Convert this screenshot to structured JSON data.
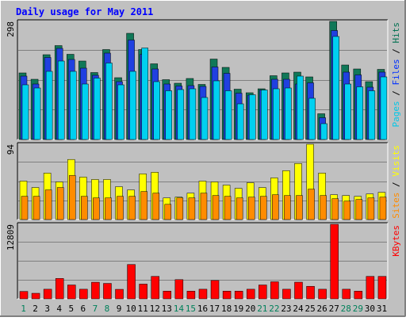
{
  "chart_data": [
    {
      "type": "bar",
      "title": "Daily usage for May 2011",
      "ymax_label": "298",
      "ylim": [
        0,
        298
      ],
      "legend": [
        {
          "label": "Pages",
          "color": "#00c8e8"
        },
        {
          "label": "Files",
          "color": "#0030ff"
        },
        {
          "label": "Hits",
          "color": "#007050"
        }
      ],
      "categories": [
        "1",
        "2",
        "3",
        "4",
        "5",
        "6",
        "7",
        "8",
        "9",
        "10",
        "11",
        "12",
        "13",
        "14",
        "15",
        "16",
        "17",
        "18",
        "19",
        "20",
        "21",
        "22",
        "23",
        "24",
        "25",
        "26",
        "27",
        "28",
        "29",
        "30",
        "31"
      ],
      "weekend_days": [
        "1",
        "7",
        "8",
        "14",
        "15",
        "21",
        "22",
        "28",
        "29"
      ],
      "series": [
        {
          "name": "Hits",
          "color": "#107858",
          "values": [
            168,
            152,
            214,
            237,
            215,
            198,
            169,
            227,
            156,
            268,
            227,
            191,
            151,
            142,
            154,
            139,
            203,
            182,
            127,
            118,
            128,
            161,
            168,
            170,
            158,
            65,
            298,
            188,
            178,
            146,
            177
          ]
        },
        {
          "name": "Files",
          "color": "#2040e0",
          "values": [
            160,
            140,
            207,
            230,
            202,
            180,
            162,
            218,
            146,
            251,
            215,
            178,
            140,
            135,
            136,
            134,
            183,
            167,
            117,
            112,
            125,
            152,
            152,
            140,
            143,
            55,
            275,
            170,
            163,
            132,
            170
          ]
        },
        {
          "name": "Pages",
          "color": "#00d0f0",
          "values": [
            138,
            130,
            172,
            198,
            172,
            140,
            155,
            193,
            138,
            172,
            231,
            146,
            123,
            126,
            128,
            106,
            148,
            123,
            90,
            113,
            125,
            128,
            130,
            160,
            104,
            40,
            260,
            140,
            133,
            123,
            158
          ]
        }
      ]
    },
    {
      "type": "bar",
      "ymax_label": "94",
      "ylim": [
        0,
        94
      ],
      "legend": [
        {
          "label": "Sites",
          "color": "#ff8c00"
        },
        {
          "label": "Visits",
          "color": "#ffff00"
        }
      ],
      "series": [
        {
          "name": "Visits",
          "color": "#ffff00",
          "values": [
            48,
            40,
            58,
            47,
            75,
            53,
            50,
            50,
            41,
            37,
            57,
            59,
            27,
            28,
            33,
            48,
            47,
            43,
            39,
            46,
            40,
            52,
            61,
            70,
            94,
            58,
            31,
            30,
            29,
            32,
            34
          ]
        },
        {
          "name": "Sites",
          "color": "#ff8c00",
          "values": [
            29,
            29,
            37,
            40,
            55,
            29,
            27,
            27,
            29,
            29,
            35,
            33,
            19,
            27,
            27,
            33,
            30,
            29,
            27,
            28,
            29,
            31,
            30,
            30,
            38,
            30,
            26,
            23,
            25,
            27,
            28
          ]
        }
      ]
    },
    {
      "type": "bar",
      "ymax_label": "12809",
      "ylim": [
        0,
        12809
      ],
      "legend": [
        {
          "label": "KBytes",
          "color": "#ff0000"
        }
      ],
      "series": [
        {
          "name": "KBytes",
          "color": "#ff0000",
          "values": [
            1270,
            950,
            1650,
            3500,
            2380,
            1650,
            2850,
            2650,
            1630,
            5900,
            2530,
            3860,
            1320,
            3300,
            1320,
            1650,
            3150,
            1320,
            1320,
            1650,
            2380,
            2930,
            1650,
            2860,
            2150,
            1650,
            12809,
            1650,
            1320,
            3860,
            3860
          ]
        }
      ]
    }
  ]
}
